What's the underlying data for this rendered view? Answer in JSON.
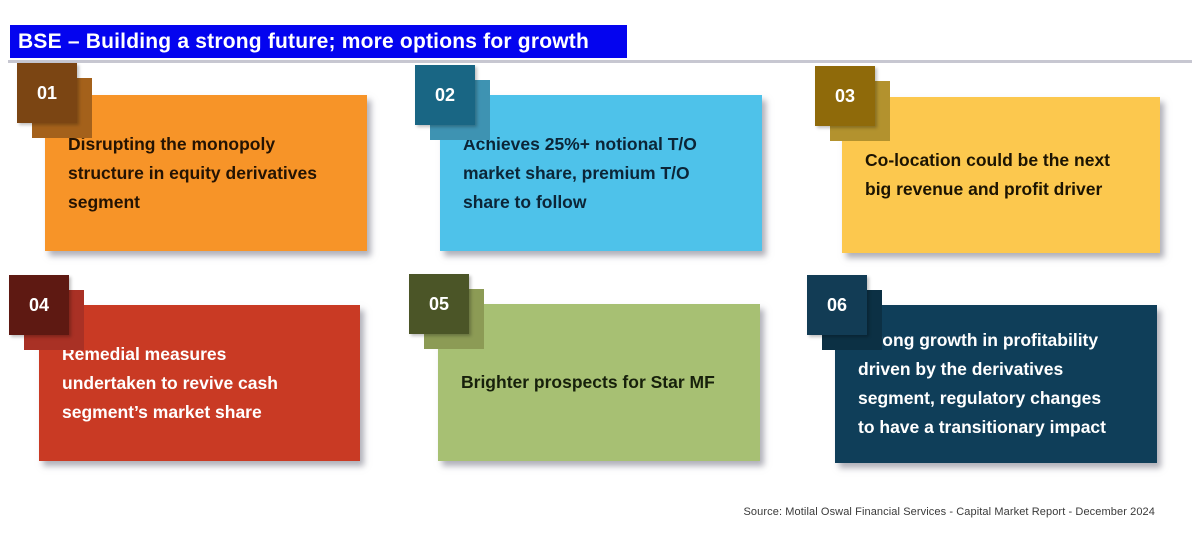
{
  "title": {
    "text": "BSE – Building a strong future; more options for growth",
    "bg_color": "#0404EF",
    "text_color": "#FFFFFF"
  },
  "cards": [
    {
      "number": "01",
      "lines": [
        "Disrupting the monopoly",
        "structure in equity derivatives",
        "segment"
      ],
      "badge_color": "#7B4513",
      "badge_shadow_color": "#A4611B",
      "card_color": "#F79428",
      "text_color": "#241303"
    },
    {
      "number": "02",
      "lines": [
        "Achieves 25%+ notional T/O",
        "market share, premium T/O",
        "share to follow"
      ],
      "badge_color": "#196684",
      "badge_shadow_color": "#3E93B2",
      "card_color": "#4EC2EA",
      "text_color": "#0C2537"
    },
    {
      "number": "03",
      "lines": [
        "Co-location could be the next",
        "big revenue and profit driver"
      ],
      "badge_color": "#8F6A0A",
      "badge_shadow_color": "#B3922E",
      "card_color": "#FCC84E",
      "text_color": "#1C1402"
    },
    {
      "number": "04",
      "lines": [
        "Remedial measures",
        "undertaken to revive cash",
        "segment’s market share"
      ],
      "badge_color": "#5E1912",
      "badge_shadow_color": "#A93125",
      "card_color": "#C93A24",
      "text_color": "#FFFFFF"
    },
    {
      "number": "05",
      "lines": [
        "Brighter prospects for Star MF"
      ],
      "badge_color": "#4B5527",
      "badge_shadow_color": "#8C9B55",
      "card_color": "#A7C073",
      "text_color": "#17200B"
    },
    {
      "number": "06",
      "lines": [
        "Strong growth in profitability",
        "driven by the derivatives",
        "segment, regulatory changes",
        "to have a transitionary impact"
      ],
      "badge_color": "#123C55",
      "badge_shadow_color": "#0C3044",
      "card_color": "#0F3E59",
      "text_color": "#FFFFFF"
    }
  ],
  "footer": {
    "source_text": "Source: Motilal Oswal Financial Services - Capital Market Report - December 2024"
  }
}
